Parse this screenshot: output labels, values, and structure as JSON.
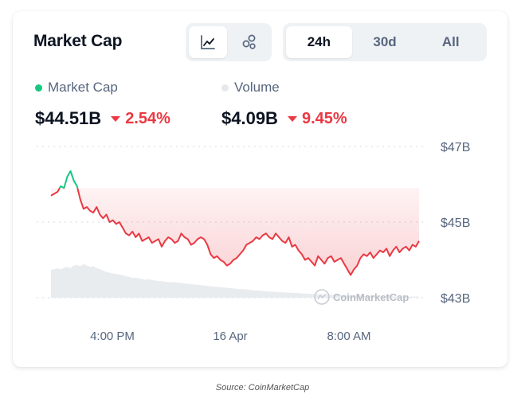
{
  "widget": {
    "title": "Market Cap",
    "chart_type_buttons": [
      {
        "icon": "line-chart-icon",
        "active": true
      },
      {
        "icon": "bubbles-icon",
        "active": false
      }
    ],
    "range_tabs": [
      {
        "label": "24h",
        "active": true
      },
      {
        "label": "30d",
        "active": false
      },
      {
        "label": "All",
        "active": false
      }
    ],
    "legend": {
      "market_cap": {
        "label": "Market Cap",
        "dot_color": "#16c784",
        "value": "$44.51B",
        "change": "2.54%"
      },
      "volume": {
        "label": "Volume",
        "dot_color": "#e6e8ea",
        "value": "$4.09B",
        "change": "9.45%"
      }
    },
    "watermark": "CoinMarketCap"
  },
  "colors": {
    "up": "#16c784",
    "down": "#ea3943",
    "volume": "#e9ecef"
  },
  "chart_data": {
    "type": "line",
    "x_tick_labels": [
      "4:00 PM",
      "16 Apr",
      "8:00 AM"
    ],
    "y_tick_labels": [
      "$47B",
      "$45B",
      "$43B"
    ],
    "ylim": [
      43,
      47
    ],
    "baseline": 45.9,
    "series": [
      {
        "name": "Market Cap",
        "values": [
          45.7,
          45.75,
          45.8,
          45.95,
          45.9,
          46.2,
          46.35,
          46.1,
          45.95,
          45.6,
          45.35,
          45.4,
          45.3,
          45.25,
          45.4,
          45.2,
          45.1,
          45.2,
          45.0,
          45.05,
          44.95,
          45.0,
          44.85,
          44.7,
          44.65,
          44.75,
          44.6,
          44.7,
          44.5,
          44.55,
          44.6,
          44.45,
          44.5,
          44.55,
          44.35,
          44.5,
          44.6,
          44.55,
          44.45,
          44.5,
          44.7,
          44.6,
          44.55,
          44.4,
          44.45,
          44.55,
          44.6,
          44.55,
          44.4,
          44.15,
          44.05,
          44.1,
          44.0,
          43.95,
          43.85,
          43.9,
          44.0,
          44.05,
          44.15,
          44.25,
          44.4,
          44.45,
          44.5,
          44.6,
          44.55,
          44.65,
          44.7,
          44.6,
          44.55,
          44.7,
          44.6,
          44.5,
          44.45,
          44.6,
          44.35,
          44.4,
          44.25,
          44.15,
          44.0,
          44.05,
          43.95,
          43.85,
          44.1,
          44.0,
          43.9,
          44.05,
          44.1,
          43.95,
          44.0,
          44.05,
          43.9,
          43.75,
          43.6,
          43.75,
          43.85,
          44.05,
          44.15,
          44.1,
          44.2,
          44.05,
          44.15,
          44.25,
          44.2,
          44.3,
          44.1,
          44.25,
          44.35,
          44.2,
          44.3,
          44.35,
          44.25,
          44.4,
          44.35,
          44.5
        ]
      }
    ],
    "volume": {
      "name": "Volume",
      "values": [
        0.78,
        0.8,
        0.82,
        0.79,
        0.84,
        0.86,
        0.83,
        0.9,
        0.92,
        0.88,
        0.94,
        0.9,
        0.86,
        0.88,
        0.83,
        0.8,
        0.76,
        0.72,
        0.7,
        0.68,
        0.66,
        0.65,
        0.63,
        0.6,
        0.58,
        0.55,
        0.56,
        0.54,
        0.52,
        0.5,
        0.52,
        0.5,
        0.48,
        0.47,
        0.46,
        0.45,
        0.44,
        0.43,
        0.44,
        0.42,
        0.41,
        0.4,
        0.39,
        0.38,
        0.37,
        0.36,
        0.35,
        0.34,
        0.33,
        0.32,
        0.31,
        0.3,
        0.3,
        0.29,
        0.28,
        0.27,
        0.26,
        0.25,
        0.24,
        0.24,
        0.23,
        0.22,
        0.21,
        0.2,
        0.2,
        0.19,
        0.18,
        0.17,
        0.17,
        0.16,
        0.16,
        0.15,
        0.15,
        0.14,
        0.14,
        0.13,
        0.13,
        0.12,
        0.12,
        0.11,
        0.11,
        0.1,
        0.1,
        0.1,
        0.09,
        0.09,
        0.08,
        0.08,
        0.08,
        0.07,
        0.07,
        0.07,
        0.06,
        0.06,
        0.06,
        0.06,
        0.05,
        0.05,
        0.05,
        0.05,
        0.05,
        0.04,
        0.04,
        0.04,
        0.04,
        0.04,
        0.03,
        0.03,
        0.03,
        0.03,
        0.03,
        0.03,
        0.03,
        0.03
      ]
    },
    "grid": true,
    "legend_position": "top-left"
  },
  "caption": "Source: CoinMarketCap"
}
